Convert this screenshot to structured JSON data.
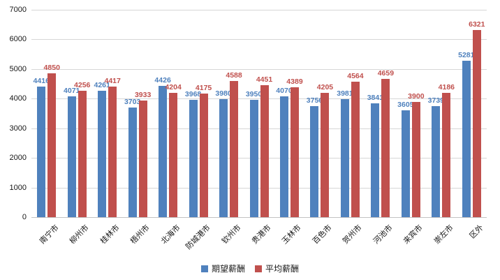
{
  "chart_data": {
    "type": "bar",
    "title": "",
    "xlabel": "",
    "ylabel": "",
    "ylim": [
      0,
      7000
    ],
    "ytick_step": 1000,
    "ytick_labels": [
      "7000",
      "6000",
      "5000",
      "4000",
      "3000",
      "2000",
      "1000",
      "0"
    ],
    "grid": true,
    "legend_position": "bottom",
    "categories": [
      "南宁市",
      "柳州市",
      "桂林市",
      "梧州市",
      "北海市",
      "防城港市",
      "钦州市",
      "贵港市",
      "玉林市",
      "百色市",
      "贺州市",
      "河池市",
      "来宾市",
      "崇左市",
      "区外"
    ],
    "series": [
      {
        "name": "期望薪酬",
        "color": "#4f81bd",
        "values": [
          4416,
          4071,
          4261,
          3703,
          4426,
          3968,
          3980,
          3950,
          4070,
          3756,
          3981,
          3841,
          3605,
          3739,
          5281
        ]
      },
      {
        "name": "平均薪酬",
        "color": "#c0504d",
        "values": [
          4850,
          4256,
          4417,
          3933,
          4204,
          4175,
          4588,
          4451,
          4389,
          4205,
          4564,
          4659,
          3900,
          4186,
          6321
        ]
      }
    ],
    "data_labels_shown": true
  },
  "legend": {
    "items": [
      {
        "label": "期望薪酬",
        "color": "#4f81bd"
      },
      {
        "label": "平均薪酬",
        "color": "#c0504d"
      }
    ]
  }
}
